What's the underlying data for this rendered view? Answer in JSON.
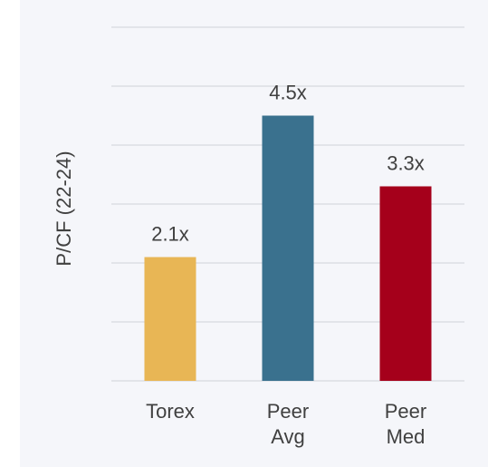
{
  "chart_data": {
    "type": "bar",
    "y_label": "P/CF (22-24)",
    "categories": [
      "Torex",
      "Peer Avg",
      "Peer Med"
    ],
    "values": [
      2.1,
      4.5,
      3.3
    ],
    "value_labels": [
      "2.1x",
      "4.5x",
      "3.3x"
    ],
    "colors": [
      "#e8b655",
      "#3a718e",
      "#a5001b"
    ],
    "ylim": [
      0,
      6
    ],
    "yticks": [
      0,
      1,
      2,
      3,
      4,
      5,
      6
    ],
    "grid": true
  }
}
